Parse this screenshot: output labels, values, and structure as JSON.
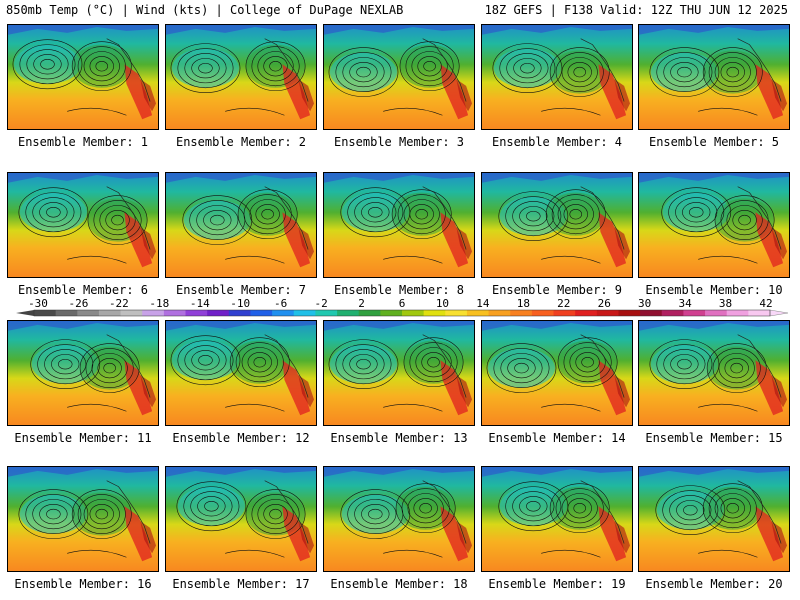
{
  "header": {
    "left": "850mb Temp (°C) | Wind (kts) | College of DuPage NEXLAB",
    "right": "18Z GEFS | F138 Valid: 12Z THU JUN 12 2025"
  },
  "panels": [
    {
      "label": "Ensemble Member: 1"
    },
    {
      "label": "Ensemble Member: 2"
    },
    {
      "label": "Ensemble Member: 3"
    },
    {
      "label": "Ensemble Member: 4"
    },
    {
      "label": "Ensemble Member: 5"
    },
    {
      "label": "Ensemble Member: 6"
    },
    {
      "label": "Ensemble Member: 7"
    },
    {
      "label": "Ensemble Member: 8"
    },
    {
      "label": "Ensemble Member: 9"
    },
    {
      "label": "Ensemble Member: 10"
    },
    {
      "label": "Ensemble Member: 11"
    },
    {
      "label": "Ensemble Member: 12"
    },
    {
      "label": "Ensemble Member: 13"
    },
    {
      "label": "Ensemble Member: 14"
    },
    {
      "label": "Ensemble Member: 15"
    },
    {
      "label": "Ensemble Member: 16"
    },
    {
      "label": "Ensemble Member: 17"
    },
    {
      "label": "Ensemble Member: 18"
    },
    {
      "label": "Ensemble Member: 19"
    },
    {
      "label": "Ensemble Member: 20"
    }
  ],
  "colorbar": {
    "ticks": [
      "-30",
      "-26",
      "-22",
      "-18",
      "-14",
      "-10",
      "-6",
      "-2",
      "2",
      "6",
      "10",
      "14",
      "18",
      "22",
      "26",
      "30",
      "34",
      "38",
      "42"
    ],
    "colors": [
      "#4a4a4a",
      "#6a6a6a",
      "#8a8a8a",
      "#a8a8a8",
      "#bfbfbf",
      "#c8a2e8",
      "#b070e0",
      "#9040d8",
      "#7020c8",
      "#3040d0",
      "#2060e8",
      "#2090f0",
      "#20c0e8",
      "#20c8b0",
      "#20b070",
      "#30a040",
      "#60b020",
      "#a0c810",
      "#e0e010",
      "#f8e030",
      "#f8c020",
      "#f8a020",
      "#f88020",
      "#f86020",
      "#f04020",
      "#e02020",
      "#c81818",
      "#a81010",
      "#901030",
      "#b02060",
      "#d04090",
      "#e070c0",
      "#f0a0e0",
      "#f8c8f0"
    ]
  }
}
